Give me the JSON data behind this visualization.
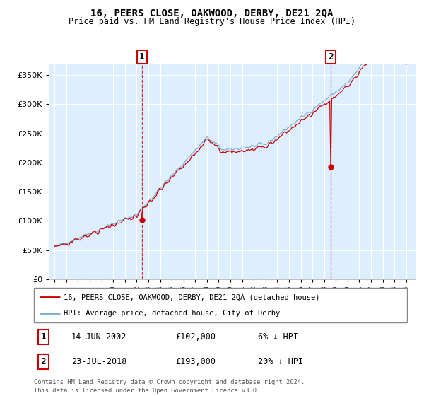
{
  "title": "16, PEERS CLOSE, OAKWOOD, DERBY, DE21 2QA",
  "subtitle": "Price paid vs. HM Land Registry's House Price Index (HPI)",
  "legend_line1": "16, PEERS CLOSE, OAKWOOD, DERBY, DE21 2QA (detached house)",
  "legend_line2": "HPI: Average price, detached house, City of Derby",
  "footer1": "Contains HM Land Registry data © Crown copyright and database right 2024.",
  "footer2": "This data is licensed under the Open Government Licence v3.0.",
  "sale1_date": "14-JUN-2002",
  "sale1_price": "£102,000",
  "sale1_hpi": "6% ↓ HPI",
  "sale2_date": "23-JUL-2018",
  "sale2_price": "£193,000",
  "sale2_hpi": "20% ↓ HPI",
  "sale1_year": 2002.45,
  "sale1_value": 102000,
  "sale2_year": 2018.55,
  "sale2_value": 193000,
  "red_color": "#cc0000",
  "blue_color": "#7ab0d4",
  "marker_box_color": "#cc0000",
  "plot_bg": "#ddeeff",
  "ylim_min": 0,
  "ylim_max": 370000,
  "xlim_min": 1994.5,
  "xlim_max": 2025.8
}
